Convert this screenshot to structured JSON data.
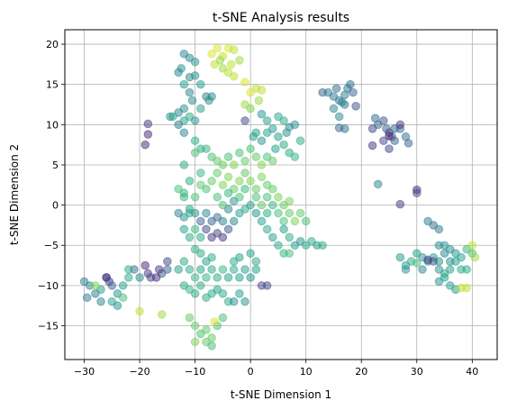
{
  "chart_data": {
    "type": "scatter",
    "title": "t-SNE Analysis results",
    "xlabel": "t-SNE Dimension 1",
    "ylabel": "t-SNE Dimension 2",
    "xlim": [
      -33.5,
      44.5
    ],
    "ylim": [
      -19.2,
      21.8
    ],
    "xticks": [
      -30,
      -20,
      -10,
      0,
      10,
      20,
      30,
      40
    ],
    "yticks": [
      -15,
      -10,
      -5,
      0,
      5,
      10,
      15,
      20
    ],
    "grid": true,
    "colormap": "viridis",
    "alpha": 0.5,
    "points": [
      [
        -30,
        -9.5,
        0.4
      ],
      [
        -29,
        -10,
        0.45
      ],
      [
        -28,
        -11,
        0.42
      ],
      [
        -27,
        -10.5,
        0.55
      ],
      [
        -26,
        -9,
        0.1
      ],
      [
        -25.5,
        -9.5,
        0.15
      ],
      [
        -25,
        -10,
        0.3
      ],
      [
        -24,
        -11,
        0.5
      ],
      [
        -23,
        -10,
        0.55
      ],
      [
        -22,
        -9,
        0.6
      ],
      [
        -21,
        -8,
        0.35
      ],
      [
        -20,
        -9,
        0.45
      ],
      [
        -25,
        -12,
        0.55
      ],
      [
        -24,
        -12.5,
        0.5
      ],
      [
        -27,
        -12,
        0.45
      ],
      [
        -28,
        -10,
        0.8
      ],
      [
        -23,
        -11.5,
        0.7
      ],
      [
        -22,
        -8,
        0.6
      ],
      [
        -26,
        -9,
        0.2
      ],
      [
        -29.5,
        -11.5,
        0.4
      ],
      [
        -20,
        -13.2,
        0.9
      ],
      [
        -16,
        -13.6,
        0.85
      ],
      [
        -19,
        -7.5,
        0.1
      ],
      [
        -18.5,
        -8.5,
        0.15
      ],
      [
        -18,
        -9,
        0.2
      ],
      [
        -16,
        -8.5,
        0.25
      ],
      [
        -15,
        -8,
        0.3
      ],
      [
        -16.5,
        -8,
        0.15
      ],
      [
        -17,
        -9,
        0.1
      ],
      [
        -15,
        -7,
        0.2
      ],
      [
        -12,
        18.8,
        0.45
      ],
      [
        -11,
        18.3,
        0.45
      ],
      [
        -10,
        17.8,
        0.5
      ],
      [
        -12.5,
        17,
        0.5
      ],
      [
        -13,
        16.5,
        0.45
      ],
      [
        -11,
        15.9,
        0.45
      ],
      [
        -10,
        16.1,
        0.5
      ],
      [
        -12,
        15,
        0.55
      ],
      [
        -9,
        15,
        0.55
      ],
      [
        -11,
        14,
        0.45
      ],
      [
        -10.5,
        13,
        0.45
      ],
      [
        -12,
        12,
        0.5
      ],
      [
        -8,
        13.5,
        0.45
      ],
      [
        -13,
        11.5,
        0.45
      ],
      [
        -14,
        11,
        0.6
      ],
      [
        -11,
        11,
        0.6
      ],
      [
        -10,
        10.5,
        0.5
      ],
      [
        -12,
        10.5,
        0.55
      ],
      [
        -9,
        12,
        0.55
      ],
      [
        -7,
        13.5,
        0.45
      ],
      [
        -7.5,
        13,
        0.5
      ],
      [
        -13,
        10,
        0.4
      ],
      [
        -14.5,
        11,
        0.5
      ],
      [
        -12,
        9,
        0.45
      ],
      [
        -10,
        8,
        0.6
      ],
      [
        -9,
        7,
        0.6
      ],
      [
        -7,
        18.8,
        0.95
      ],
      [
        -6,
        19.5,
        0.95
      ],
      [
        -5,
        18.5,
        0.9
      ],
      [
        -4,
        19.5,
        0.95
      ],
      [
        -3,
        19.3,
        0.9
      ],
      [
        -6.5,
        17.5,
        0.9
      ],
      [
        -5,
        17,
        0.85
      ],
      [
        -4,
        16.5,
        0.9
      ],
      [
        -3.5,
        17.5,
        0.9
      ],
      [
        -2,
        18,
        0.85
      ],
      [
        -3,
        16,
        0.9
      ],
      [
        -5.5,
        18,
        0.85
      ],
      [
        -18.5,
        10.1,
        0.15
      ],
      [
        -18.5,
        8.8,
        0.1
      ],
      [
        -19,
        7.5,
        0.1
      ],
      [
        -1,
        15.3,
        0.95
      ],
      [
        0,
        14,
        0.95
      ],
      [
        1,
        14.5,
        0.9
      ],
      [
        2,
        14.3,
        0.9
      ],
      [
        -1,
        12.5,
        0.85
      ],
      [
        0,
        12,
        0.8
      ],
      [
        1.5,
        13,
        0.85
      ],
      [
        2,
        11.3,
        0.5
      ],
      [
        3,
        10.5,
        0.55
      ],
      [
        5,
        11,
        0.6
      ],
      [
        6,
        10.5,
        0.6
      ],
      [
        4,
        9.5,
        0.55
      ],
      [
        7,
        9.7,
        0.45
      ],
      [
        8,
        10,
        0.5
      ],
      [
        6.5,
        9,
        0.5
      ],
      [
        5,
        8.5,
        0.55
      ],
      [
        3,
        9,
        0.55
      ],
      [
        2,
        8,
        0.5
      ],
      [
        0.5,
        8.5,
        0.55
      ],
      [
        -1,
        10.5,
        0.2
      ],
      [
        1,
        9,
        0.55
      ],
      [
        6,
        7.5,
        0.6
      ],
      [
        7,
        6.5,
        0.6
      ],
      [
        8,
        6,
        0.65
      ],
      [
        9,
        8,
        0.6
      ],
      [
        4.5,
        7,
        0.55
      ],
      [
        -12,
        5,
        0.6
      ],
      [
        -10,
        6.5,
        0.7
      ],
      [
        -8,
        7,
        0.65
      ],
      [
        -7,
        6,
        0.7
      ],
      [
        -6,
        5.5,
        0.75
      ],
      [
        -5,
        5,
        0.75
      ],
      [
        -4,
        6,
        0.7
      ],
      [
        -3,
        5,
        0.8
      ],
      [
        -2,
        6.5,
        0.7
      ],
      [
        -1,
        5.5,
        0.75
      ],
      [
        0,
        7,
        0.7
      ],
      [
        1,
        6,
        0.75
      ],
      [
        2,
        5,
        0.8
      ],
      [
        3,
        6,
        0.7
      ],
      [
        4,
        5.5,
        0.75
      ],
      [
        -11,
        3,
        0.6
      ],
      [
        -9,
        4,
        0.65
      ],
      [
        -8,
        2,
        0.7
      ],
      [
        -7,
        3,
        0.75
      ],
      [
        -6,
        4,
        0.75
      ],
      [
        -5,
        2.5,
        0.8
      ],
      [
        -4,
        3.5,
        0.8
      ],
      [
        -3,
        2,
        0.75
      ],
      [
        -2,
        3,
        0.8
      ],
      [
        -1,
        4,
        0.75
      ],
      [
        0,
        3,
        0.8
      ],
      [
        1,
        2,
        0.75
      ],
      [
        2,
        3.5,
        0.8
      ],
      [
        3,
        2.5,
        0.75
      ],
      [
        -13,
        2,
        0.7
      ],
      [
        -12,
        1.5,
        0.65
      ],
      [
        -10,
        1,
        0.7
      ],
      [
        -9,
        2.5,
        0.75
      ],
      [
        -13,
        -1,
        0.45
      ],
      [
        -12,
        -1.5,
        0.5
      ],
      [
        -11,
        -0.5,
        0.55
      ],
      [
        -10,
        -1,
        0.5
      ],
      [
        -9,
        -2,
        0.3
      ],
      [
        -8,
        -1,
        0.45
      ],
      [
        -7,
        -2,
        0.3
      ],
      [
        -6,
        -1.5,
        0.35
      ],
      [
        -5,
        -2,
        0.4
      ],
      [
        -4,
        -0.5,
        0.45
      ],
      [
        -3,
        0.5,
        0.5
      ],
      [
        -2,
        -1,
        0.55
      ],
      [
        -1,
        -0.5,
        0.6
      ],
      [
        0,
        0,
        0.55
      ],
      [
        1,
        -1,
        0.5
      ],
      [
        2,
        -2,
        0.55
      ],
      [
        3,
        -1,
        0.6
      ],
      [
        4,
        0,
        0.65
      ],
      [
        5,
        -1,
        0.7
      ],
      [
        6,
        -2,
        0.7
      ],
      [
        7,
        -1,
        0.75
      ],
      [
        8,
        -2,
        0.8
      ],
      [
        6,
        -3,
        0.55
      ],
      [
        7,
        -4,
        0.6
      ],
      [
        -8,
        -3,
        0.2
      ],
      [
        -7,
        -4,
        0.15
      ],
      [
        -6,
        -3.5,
        0.2
      ],
      [
        -5,
        -4,
        0.15
      ],
      [
        -4,
        -3,
        0.25
      ],
      [
        -12,
        -3,
        0.55
      ],
      [
        -11,
        -4,
        0.6
      ],
      [
        -10,
        -3,
        0.65
      ],
      [
        -9,
        -4,
        0.6
      ],
      [
        -3,
        -2,
        0.45
      ],
      [
        -12,
        1,
        0.65
      ],
      [
        -11,
        -1,
        0.6
      ],
      [
        -6,
        1,
        0.7
      ],
      [
        -5,
        0,
        0.7
      ],
      [
        -4,
        1.5,
        0.65
      ],
      [
        -2,
        1,
        0.7
      ],
      [
        -1,
        2,
        0.65
      ],
      [
        1,
        1,
        0.7
      ],
      [
        2,
        0,
        0.75
      ],
      [
        3,
        1,
        0.7
      ],
      [
        4,
        2,
        0.75
      ],
      [
        5,
        1,
        0.8
      ],
      [
        6,
        0,
        0.75
      ],
      [
        7,
        0.5,
        0.8
      ],
      [
        9,
        -1,
        0.75
      ],
      [
        10,
        -2,
        0.7
      ],
      [
        8,
        -5,
        0.55
      ],
      [
        9,
        -4.5,
        0.5
      ],
      [
        10,
        -5,
        0.6
      ],
      [
        11,
        -4.5,
        0.6
      ],
      [
        12,
        -5,
        0.55
      ],
      [
        13,
        -5,
        0.6
      ],
      [
        6,
        -6,
        0.65
      ],
      [
        7,
        -6,
        0.7
      ],
      [
        5,
        -5,
        0.6
      ],
      [
        4,
        -4,
        0.55
      ],
      [
        3,
        -3,
        0.6
      ],
      [
        -13,
        -8,
        0.55
      ],
      [
        -12,
        -7,
        0.6
      ],
      [
        -11,
        -8,
        0.6
      ],
      [
        -10,
        -9,
        0.65
      ],
      [
        -9,
        -8,
        0.55
      ],
      [
        -8,
        -9,
        0.65
      ],
      [
        -7,
        -8,
        0.6
      ],
      [
        -6,
        -9,
        0.6
      ],
      [
        -5,
        -8,
        0.65
      ],
      [
        -4,
        -9,
        0.55
      ],
      [
        -3,
        -8,
        0.6
      ],
      [
        -2,
        -9,
        0.55
      ],
      [
        -1,
        -8,
        0.55
      ],
      [
        0,
        -9,
        0.5
      ],
      [
        1,
        -8,
        0.55
      ],
      [
        2,
        -10,
        0.2
      ],
      [
        3,
        -10,
        0.2
      ],
      [
        -12,
        -10,
        0.6
      ],
      [
        -11,
        -10.5,
        0.65
      ],
      [
        -10,
        -11,
        0.6
      ],
      [
        -9,
        -10,
        0.6
      ],
      [
        -8,
        -11.5,
        0.6
      ],
      [
        -7,
        -11,
        0.6
      ],
      [
        -6,
        -10.5,
        0.55
      ],
      [
        -5,
        -11,
        0.6
      ],
      [
        -4,
        -12,
        0.6
      ],
      [
        -3,
        -12,
        0.5
      ],
      [
        -2,
        -11,
        0.55
      ],
      [
        -1,
        -12,
        0.5
      ],
      [
        -10,
        -5.5,
        0.6
      ],
      [
        -9,
        -6,
        0.6
      ],
      [
        -8,
        -7,
        0.55
      ],
      [
        -7,
        -6.5,
        0.6
      ],
      [
        -3,
        -7,
        0.6
      ],
      [
        -2,
        -6.5,
        0.55
      ],
      [
        0,
        -6,
        0.55
      ],
      [
        1,
        -7,
        0.6
      ],
      [
        -10,
        -15,
        0.75
      ],
      [
        -9,
        -16,
        0.7
      ],
      [
        -8,
        -15.5,
        0.75
      ],
      [
        -7,
        -16.5,
        0.75
      ],
      [
        -6,
        -15,
        0.7
      ],
      [
        -10,
        -17,
        0.8
      ],
      [
        -8,
        -17,
        0.75
      ],
      [
        -7,
        -17.5,
        0.7
      ],
      [
        -11,
        -14,
        0.75
      ],
      [
        -6.5,
        -14.5,
        0.95
      ],
      [
        -5,
        -14,
        0.7
      ],
      [
        14,
        14,
        0.4
      ],
      [
        15,
        13.5,
        0.4
      ],
      [
        15.5,
        14.5,
        0.35
      ],
      [
        16,
        13,
        0.4
      ],
      [
        17,
        13.7,
        0.4
      ],
      [
        17.5,
        14.5,
        0.4
      ],
      [
        18,
        15,
        0.35
      ],
      [
        18.5,
        14,
        0.3
      ],
      [
        16.5,
        12.8,
        0.45
      ],
      [
        17,
        12.5,
        0.4
      ],
      [
        19,
        12.3,
        0.25
      ],
      [
        16,
        11,
        0.45
      ],
      [
        15,
        12,
        0.45
      ],
      [
        13,
        14,
        0.3
      ],
      [
        16,
        9.6,
        0.3
      ],
      [
        17,
        9.5,
        0.35
      ],
      [
        22,
        9.5,
        0.2
      ],
      [
        22.5,
        10.8,
        0.35
      ],
      [
        23,
        10,
        0.3
      ],
      [
        24,
        10.5,
        0.25
      ],
      [
        24.5,
        9.5,
        0.3
      ],
      [
        25,
        9,
        0.2
      ],
      [
        25.5,
        8.5,
        0.25
      ],
      [
        26,
        9.5,
        0.3
      ],
      [
        27,
        9.5,
        0.35
      ],
      [
        28,
        8.5,
        0.35
      ],
      [
        22,
        7.4,
        0.15
      ],
      [
        25,
        7,
        0.2
      ],
      [
        26,
        8,
        0.3
      ],
      [
        24,
        8,
        0.2
      ],
      [
        25,
        8.6,
        0.1
      ],
      [
        27,
        10,
        0.15
      ],
      [
        28.5,
        7.7,
        0.3
      ],
      [
        23,
        2.6,
        0.45
      ],
      [
        27,
        0.1,
        0.15
      ],
      [
        30,
        1.9,
        0.1
      ],
      [
        30,
        1.5,
        0.2
      ],
      [
        32,
        -2,
        0.4
      ],
      [
        33,
        -2.5,
        0.35
      ],
      [
        34,
        -3,
        0.4
      ],
      [
        27,
        -6.5,
        0.5
      ],
      [
        28,
        -7.5,
        0.55
      ],
      [
        29,
        -7,
        0.6
      ],
      [
        30,
        -6,
        0.55
      ],
      [
        31,
        -6.5,
        0.5
      ],
      [
        32,
        -7,
        0.45
      ],
      [
        33,
        -6.5,
        0.55
      ],
      [
        34,
        -7,
        0.5
      ],
      [
        35,
        -6,
        0.45
      ],
      [
        36,
        -5.5,
        0.5
      ],
      [
        37,
        -6,
        0.5
      ],
      [
        38,
        -6.5,
        0.55
      ],
      [
        34,
        -5,
        0.45
      ],
      [
        35,
        -5,
        0.5
      ],
      [
        36,
        -7,
        0.5
      ],
      [
        37,
        -7,
        0.55
      ],
      [
        38,
        -8,
        0.6
      ],
      [
        39,
        -5.5,
        0.65
      ],
      [
        40,
        -6,
        0.7
      ],
      [
        40.5,
        -6.5,
        0.85
      ],
      [
        40,
        -5,
        0.9
      ],
      [
        39,
        -8,
        0.6
      ],
      [
        36,
        -8,
        0.55
      ],
      [
        35,
        -9,
        0.55
      ],
      [
        34,
        -9.5,
        0.5
      ],
      [
        36,
        -10,
        0.55
      ],
      [
        37,
        -10.5,
        0.55
      ],
      [
        38,
        -10.3,
        0.9
      ],
      [
        39,
        -10.3,
        0.9
      ],
      [
        33,
        -7,
        0.25
      ],
      [
        32,
        -6.8,
        0.2
      ],
      [
        31,
        -8,
        0.45
      ],
      [
        30,
        -7.2,
        0.7
      ],
      [
        28,
        -8,
        0.5
      ],
      [
        35,
        -8.5,
        0.6
      ],
      [
        34,
        -8,
        0.5
      ]
    ]
  }
}
